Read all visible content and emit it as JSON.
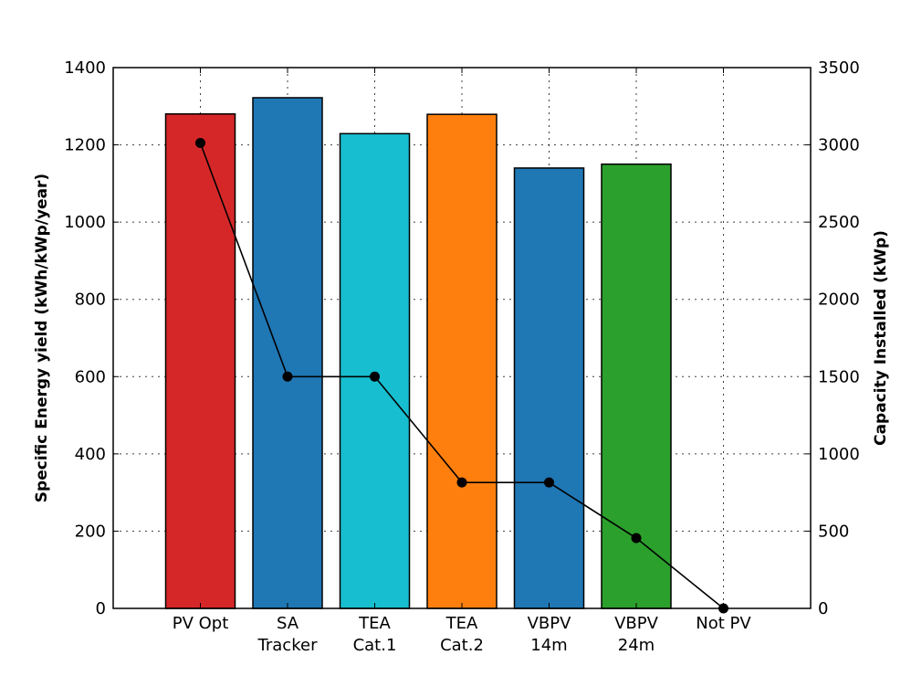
{
  "chart_data": {
    "type": "bar",
    "categories": [
      [
        "PV Opt"
      ],
      [
        "SA",
        "Tracker"
      ],
      [
        "TEA",
        "Cat.1"
      ],
      [
        "TEA",
        "Cat.2"
      ],
      [
        "VBPV",
        "14m"
      ],
      [
        "VBPV",
        "24m"
      ],
      [
        "Not PV"
      ]
    ],
    "bar_values": [
      1280,
      1322,
      1229,
      1279,
      1140,
      1150,
      null
    ],
    "bar_colors": [
      "#d62728",
      "#1f77b4",
      "#17becf",
      "#ff7f0e",
      "#1f77b4",
      "#2ca02c",
      null
    ],
    "line_values": [
      3012,
      1500,
      1500,
      815,
      815,
      455,
      0
    ],
    "line_color": "#000000",
    "ylabel_left": "Specific Energy yield (kWh/kWp/year)",
    "ylabel_right": "Capacity Installed (kWp)",
    "ylim_left": [
      0,
      1400
    ],
    "ylim_right": [
      0,
      3500
    ],
    "yticks_left": [
      0,
      200,
      400,
      600,
      800,
      1000,
      1200,
      1400
    ],
    "yticks_right": [
      0,
      500,
      1000,
      1500,
      2000,
      2500,
      3000,
      3500
    ],
    "grid": true
  }
}
